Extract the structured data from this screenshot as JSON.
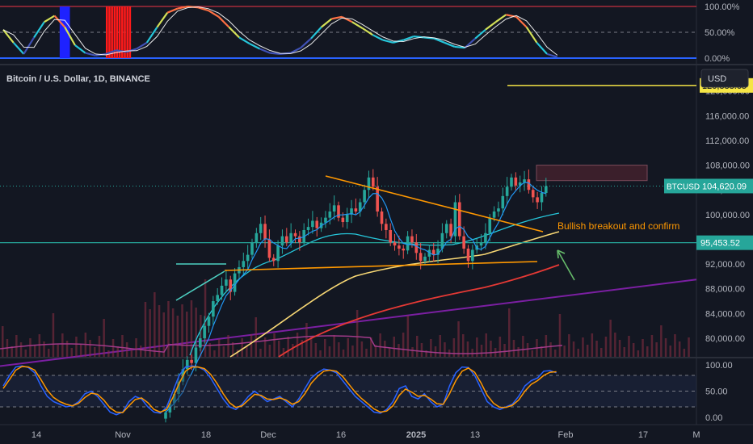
{
  "header": {
    "symbol_title": "Bitcoin / U.S. Dollar, 1D, BINANCE",
    "currency": "USD"
  },
  "colors": {
    "background": "#131722",
    "grid": "#2a2e39",
    "up": "#26a69a",
    "down": "#ef5350",
    "trendline": "#ff9800",
    "ema_fast": "#2196f3",
    "ema_mid": "#26c6da",
    "ema_slow": "#f7d774",
    "ema_200": "#e53935",
    "long_trend": "#7b1fa2",
    "hline_support": "#26a69a",
    "target_line": "#f5e546",
    "stoch_k": "#2962ff",
    "stoch_d": "#ff9800",
    "zone": "#3b1f2b"
  },
  "chart_data": [
    {
      "type": "line",
      "name": "top-oscillator",
      "y_ticks": [
        "100.00%",
        "50.00%",
        "0.00%"
      ],
      "ylim": [
        0,
        100
      ],
      "x": [
        0,
        2,
        4,
        6,
        8,
        10,
        12,
        14,
        16,
        18,
        20,
        22,
        24,
        26,
        28,
        30,
        32,
        34,
        36,
        38,
        40,
        42,
        44,
        46,
        48,
        50,
        52,
        54,
        56,
        58,
        60,
        62,
        64,
        66,
        68,
        70,
        72,
        74,
        76,
        78,
        80,
        82,
        84,
        86,
        88,
        90,
        92,
        94,
        96,
        98,
        100,
        102,
        104,
        106,
        108
      ],
      "series": [
        {
          "name": "",
          "values": [
            55,
            30,
            8,
            40,
            70,
            82,
            60,
            25,
            10,
            5,
            8,
            15,
            12,
            18,
            30,
            60,
            88,
            96,
            100,
            98,
            92,
            80,
            60,
            40,
            28,
            18,
            10,
            8,
            10,
            20,
            38,
            60,
            76,
            80,
            70,
            58,
            45,
            35,
            30,
            35,
            42,
            40,
            38,
            30,
            22,
            20,
            38,
            55,
            70,
            84,
            80,
            60,
            30,
            8,
            2
          ]
        }
      ],
      "blue_band_x": [
        11,
        13
      ],
      "red_band_x": [
        20,
        25
      ]
    },
    {
      "type": "candlestick",
      "name": "BTCUSD daily",
      "x_ticks": [
        "14",
        "Nov",
        "18",
        "Dec",
        "16",
        "2025",
        "13",
        "Feb",
        "17",
        "M"
      ],
      "y_ticks": [
        "120,000.00",
        "116,000.00",
        "112,000.00",
        "108,000.00",
        "104,000.00",
        "100,000.00",
        "96,000.00",
        "92,000.00",
        "88,000.00",
        "84,000.00",
        "80,000.00"
      ],
      "ylim": [
        77000,
        124000
      ],
      "last_price": "104,620.09",
      "last_symbol": "BTCUSD",
      "target_price": "120,888.65",
      "support_price": "95,453.52",
      "annotation": "Bullish breakout and confirm",
      "candles_start_index": 0,
      "closes": [
        68000,
        69500,
        71000,
        73000,
        75000,
        76500,
        76000,
        78500,
        80000,
        82000,
        83500,
        86000,
        87000,
        88500,
        89500,
        87500,
        90500,
        91500,
        92500,
        93500,
        95500,
        97000,
        98500,
        96000,
        93000,
        92500,
        95000,
        96500,
        95500,
        97000,
        96500,
        95500,
        97500,
        98000,
        99000,
        97800,
        98700,
        99500,
        100500,
        101500,
        99500,
        98800,
        100000,
        101000,
        100500,
        102000,
        104000,
        106000,
        104500,
        100500,
        98500,
        97500,
        95500,
        95000,
        94500,
        94200,
        96500,
        95500,
        93800,
        92500,
        93200,
        94300,
        93500,
        94500,
        97000,
        98500,
        96500,
        102000,
        96500,
        94500,
        92500,
        94300,
        95000,
        95500,
        97000,
        99500,
        100500,
        101000,
        103000,
        104500,
        106000,
        104700,
        105200,
        105700,
        104000,
        102800,
        102000,
        103500,
        104600
      ],
      "opens": [
        67000,
        68000,
        69500,
        71000,
        73000,
        75000,
        76500,
        76000,
        78500,
        80000,
        82000,
        83500,
        86000,
        87000,
        88500,
        89500,
        87500,
        90500,
        91500,
        92500,
        93500,
        95500,
        97000,
        98500,
        96000,
        93000,
        92500,
        95000,
        96500,
        95500,
        97000,
        96500,
        95500,
        97500,
        98000,
        99000,
        97800,
        98700,
        99500,
        100500,
        101500,
        99500,
        98800,
        100000,
        101000,
        100500,
        102000,
        104000,
        106000,
        104500,
        100500,
        98500,
        97500,
        95500,
        95000,
        94500,
        94200,
        96500,
        95500,
        93800,
        92500,
        93200,
        94300,
        93500,
        94500,
        97000,
        98500,
        96500,
        102000,
        96500,
        94500,
        92500,
        94300,
        95000,
        95500,
        97000,
        99500,
        100500,
        101000,
        103000,
        104500,
        106000,
        104700,
        105200,
        105700,
        104000,
        102800,
        102000,
        103500
      ]
    },
    {
      "type": "line",
      "name": "stochastic",
      "y_ticks": [
        "100.00",
        "50.00",
        "0.00"
      ],
      "ylim": [
        0,
        100
      ],
      "series": [
        {
          "name": "",
          "values": [
            60,
            80,
            96,
            98,
            95,
            85,
            60,
            40,
            30,
            25,
            20,
            22,
            30,
            45,
            50,
            40,
            25,
            10,
            5,
            10,
            30,
            40,
            35,
            20,
            10,
            8,
            20,
            50,
            80,
            96,
            98,
            96,
            90,
            75,
            55,
            35,
            20,
            15,
            25,
            40,
            50,
            40,
            30,
            35,
            40,
            30,
            20,
            35,
            55,
            75,
            85,
            92,
            90,
            85,
            70,
            55,
            40,
            30,
            20,
            10,
            8,
            15,
            30,
            55,
            60,
            40,
            35,
            45,
            30,
            20,
            25,
            60,
            85,
            96,
            95,
            80,
            55,
            30,
            20,
            15,
            20,
            25,
            40,
            60,
            70,
            75,
            88,
            89,
            85
          ]
        },
        {
          "name": "",
          "values": [
            55,
            72,
            90,
            97,
            96,
            90,
            72,
            52,
            38,
            30,
            25,
            22,
            27,
            38,
            46,
            44,
            33,
            18,
            10,
            9,
            22,
            34,
            37,
            28,
            15,
            10,
            15,
            38,
            65,
            88,
            96,
            96,
            93,
            82,
            65,
            45,
            28,
            19,
            22,
            33,
            44,
            42,
            35,
            34,
            37,
            33,
            25,
            30,
            45,
            65,
            78,
            88,
            90,
            88,
            78,
            63,
            48,
            36,
            26,
            16,
            10,
            12,
            22,
            42,
            54,
            48,
            40,
            42,
            35,
            26,
            25,
            45,
            70,
            88,
            94,
            86,
            66,
            42,
            27,
            19,
            19,
            23,
            33,
            50,
            63,
            70,
            80,
            86,
            87
          ]
        }
      ]
    }
  ]
}
